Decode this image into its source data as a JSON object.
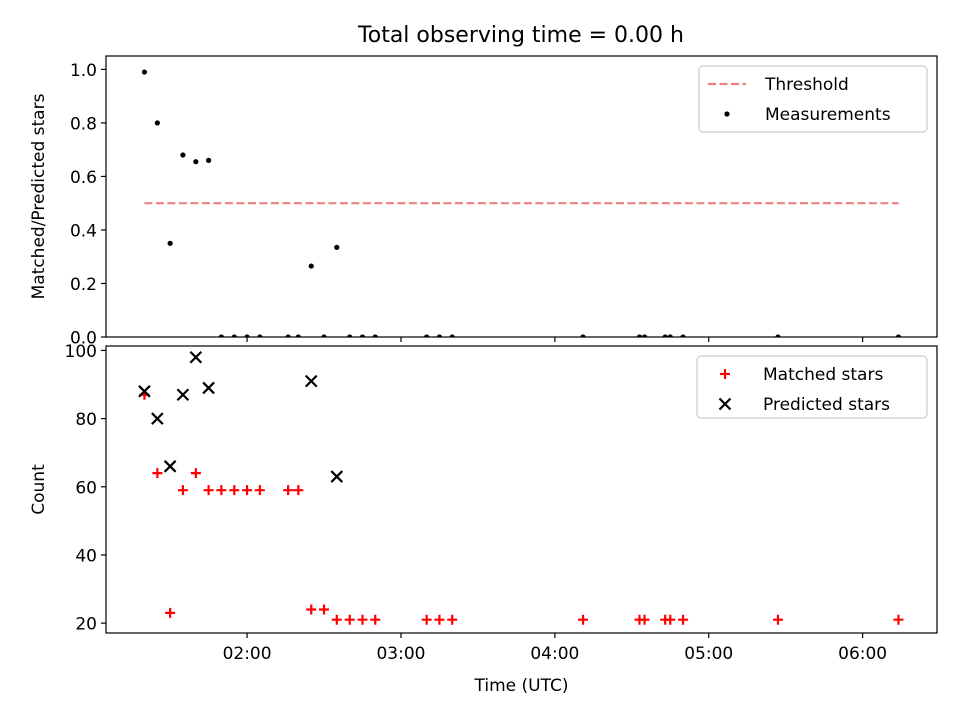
{
  "figure": {
    "title": "Total observing time = 0.00 h"
  },
  "chart_data": [
    {
      "type": "scatter",
      "ylabel": "Matched/Predicted stars",
      "xlabel": "",
      "xlim": [
        1.0833,
        6.4833
      ],
      "ylim": [
        0.0,
        1.05
      ],
      "yticks": [
        0.0,
        0.2,
        0.4,
        0.6,
        0.8,
        1.0
      ],
      "ytick_labels": [
        "0.0",
        "0.2",
        "0.4",
        "0.6",
        "0.8",
        "1.0"
      ],
      "legend_position": "upper right",
      "series": [
        {
          "name": "Threshold",
          "kind": "dashed-line",
          "color": "#f08080",
          "x": [
            1.333,
            6.233
          ],
          "y": [
            0.5,
            0.5
          ]
        },
        {
          "name": "Measurements",
          "kind": "scatter",
          "marker": "dot",
          "color": "#000000",
          "x": [
            1.333,
            1.417,
            1.5,
            1.583,
            1.667,
            1.75,
            1.833,
            1.917,
            2.0,
            2.083,
            2.267,
            2.333,
            2.417,
            2.5,
            2.583,
            2.667,
            2.75,
            2.833,
            3.167,
            3.25,
            3.333,
            4.183,
            4.55,
            4.583,
            4.717,
            4.75,
            4.833,
            5.45,
            6.233
          ],
          "y": [
            0.99,
            0.8,
            0.35,
            0.68,
            0.655,
            0.66,
            0.0,
            0.0,
            0.0,
            0.0,
            0.0,
            0.0,
            0.265,
            0.0,
            0.335,
            0.0,
            0.0,
            0.0,
            0.0,
            0.0,
            0.0,
            0.0,
            0.0,
            0.0,
            0.0,
            0.0,
            0.0,
            0.0,
            0.0
          ]
        }
      ]
    },
    {
      "type": "scatter",
      "ylabel": "Count",
      "xlabel": "Time (UTC)",
      "xlim": [
        1.0833,
        6.4833
      ],
      "ylim": [
        17.1,
        101.3
      ],
      "yticks": [
        20,
        40,
        60,
        80,
        100
      ],
      "ytick_labels": [
        "20",
        "40",
        "60",
        "80",
        "100"
      ],
      "xticks": [
        2.0,
        3.0,
        4.0,
        5.0,
        6.0
      ],
      "xtick_labels": [
        "02:00",
        "03:00",
        "04:00",
        "05:00",
        "06:00"
      ],
      "legend_position": "upper right",
      "series": [
        {
          "name": "Matched stars",
          "kind": "scatter",
          "marker": "plus",
          "color": "#ff0000",
          "x": [
            1.333,
            1.417,
            1.5,
            1.583,
            1.667,
            1.75,
            1.833,
            1.917,
            2.0,
            2.083,
            2.267,
            2.333,
            2.417,
            2.5,
            2.583,
            2.667,
            2.75,
            2.833,
            3.167,
            3.25,
            3.333,
            4.183,
            4.55,
            4.583,
            4.717,
            4.75,
            4.833,
            5.45,
            6.233
          ],
          "y": [
            87,
            64,
            23,
            59,
            64,
            59,
            59,
            59,
            59,
            59,
            59,
            59,
            24,
            24,
            21,
            21,
            21,
            21,
            21,
            21,
            21,
            21,
            21,
            21,
            21,
            21,
            21,
            21,
            21
          ]
        },
        {
          "name": "Predicted stars",
          "kind": "scatter",
          "marker": "x",
          "color": "#000000",
          "x": [
            1.333,
            1.417,
            1.5,
            1.583,
            1.667,
            1.75,
            2.417,
            2.583
          ],
          "y": [
            88,
            80,
            66,
            87,
            98,
            89,
            91,
            63
          ]
        }
      ]
    }
  ]
}
